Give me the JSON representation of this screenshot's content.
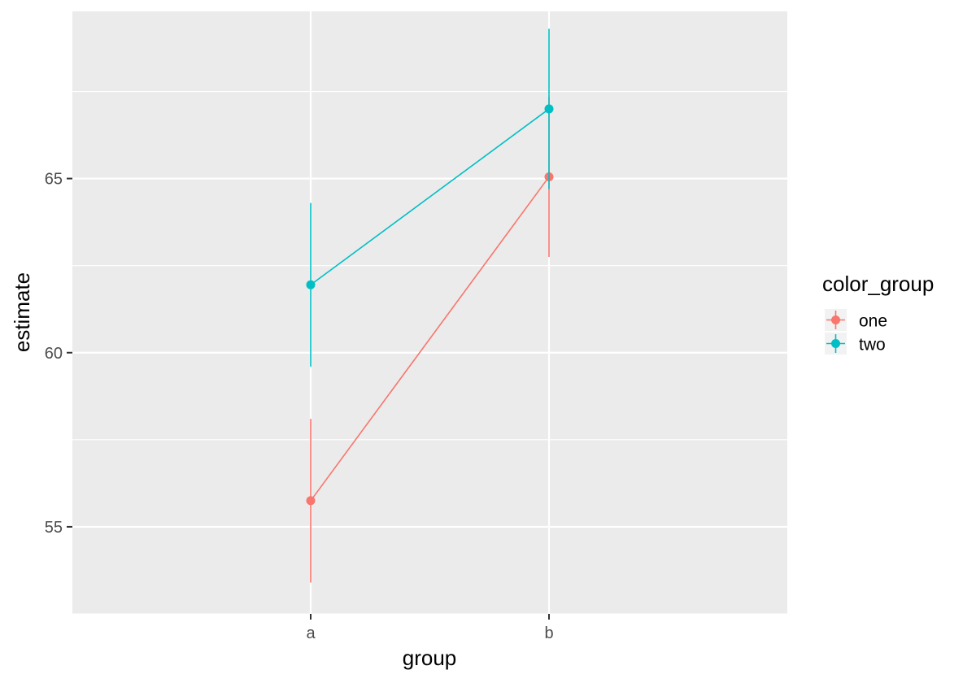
{
  "chart_data": {
    "type": "line",
    "title": "",
    "xlabel": "group",
    "ylabel": "estimate",
    "categories": [
      "a",
      "b"
    ],
    "ylim": [
      52.5,
      69.8
    ],
    "y_ticks": [
      55,
      60,
      65
    ],
    "grid": true,
    "legend": {
      "title": "color_group",
      "position": "right"
    },
    "series": [
      {
        "name": "one",
        "color": "#F8766D",
        "values": [
          55.75,
          65.05
        ],
        "lower": [
          53.4,
          62.75
        ],
        "upper": [
          58.1,
          67.35
        ]
      },
      {
        "name": "two",
        "color": "#00BFC4",
        "values": [
          61.95,
          67.0
        ],
        "lower": [
          59.6,
          64.7
        ],
        "upper": [
          64.3,
          69.3
        ]
      }
    ]
  }
}
